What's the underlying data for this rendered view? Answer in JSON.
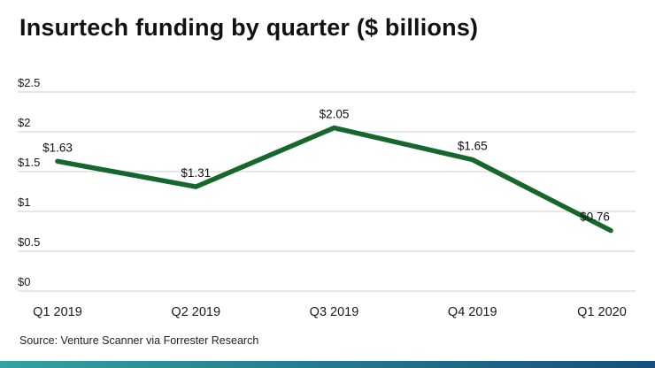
{
  "title": "Insurtech funding by quarter ($ billions)",
  "source": "Source: Venture Scanner via Forrester Research",
  "colors": {
    "line": "#15672c",
    "grid": "#cfcfcf",
    "text": "#1a1a1a",
    "label": "#111111",
    "footer_left": "#33a3a1",
    "footer_right": "#174f7c"
  },
  "chart_data": {
    "type": "line",
    "title": "Insurtech funding by quarter ($ billions)",
    "categories": [
      "Q1 2019",
      "Q2 2019",
      "Q3 2019",
      "Q4 2019",
      "Q1 2020"
    ],
    "values": [
      1.63,
      1.31,
      2.05,
      1.65,
      0.76
    ],
    "value_labels": [
      "$1.63",
      "$1.31",
      "$2.05",
      "$1.65",
      "$0.76"
    ],
    "xlabel": "",
    "ylabel": "",
    "ylim": [
      0,
      2.5
    ],
    "yticks": [
      {
        "v": 0,
        "label": "$0"
      },
      {
        "v": 0.5,
        "label": "$0.5"
      },
      {
        "v": 1,
        "label": "$1"
      },
      {
        "v": 1.5,
        "label": "$1.5"
      },
      {
        "v": 2,
        "label": "$2"
      },
      {
        "v": 2.5,
        "label": "$2.5"
      }
    ],
    "grid": "horizontal",
    "legend": "none"
  }
}
